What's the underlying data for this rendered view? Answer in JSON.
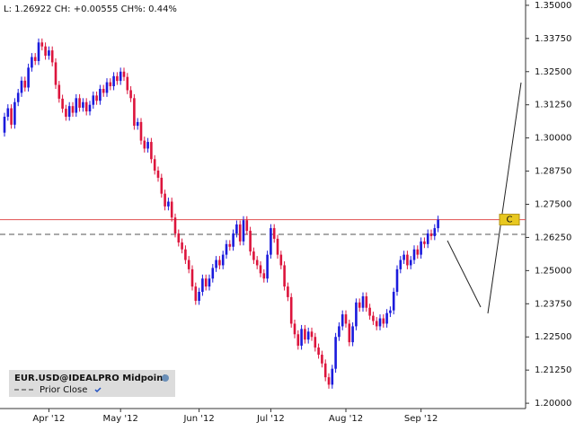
{
  "chart_data": {
    "type": "candlestick",
    "header": "L: 1.26922 CH: +0.00555 CH%: 0.44%",
    "categories": [
      null,
      null,
      null,
      null,
      null,
      null,
      null,
      null,
      null,
      null,
      null,
      null,
      null,
      "Apr '12",
      null,
      null,
      null,
      null,
      null,
      null,
      null,
      null,
      null,
      null,
      null,
      null,
      null,
      null,
      null,
      null,
      null,
      null,
      null,
      null,
      "May '12",
      null,
      null,
      null,
      null,
      null,
      null,
      null,
      null,
      null,
      null,
      null,
      null,
      null,
      null,
      null,
      null,
      null,
      null,
      null,
      null,
      null,
      null,
      "Jun '12",
      null,
      null,
      null,
      null,
      null,
      null,
      null,
      null,
      null,
      null,
      null,
      null,
      null,
      null,
      null,
      null,
      null,
      null,
      null,
      null,
      "Jul '12",
      null,
      null,
      null,
      null,
      null,
      null,
      null,
      null,
      null,
      null,
      null,
      null,
      null,
      null,
      null,
      null,
      null,
      null,
      null,
      null,
      null,
      "Aug '12",
      null,
      null,
      null,
      null,
      null,
      null,
      null,
      null,
      null,
      null,
      null,
      null,
      null,
      null,
      null,
      null,
      null,
      null,
      null,
      null,
      null,
      "Sep '12",
      null,
      null,
      null,
      null,
      null
    ],
    "series": [
      {
        "name": "EUR.USD@IDEALPRO Midpoint",
        "up_color": "#1a1adc",
        "down_color": "#dc143c",
        "open": [
          1.302,
          1.308,
          1.3112,
          1.305,
          1.3135,
          1.317,
          1.3216,
          1.319,
          1.3265,
          1.3305,
          1.329,
          1.336,
          1.3345,
          1.331,
          1.333,
          1.3285,
          1.32,
          1.3148,
          1.311,
          1.308,
          1.312,
          1.3095,
          1.315,
          1.3114,
          1.3135,
          1.31,
          1.3125,
          1.316,
          1.314,
          1.3185,
          1.317,
          1.321,
          1.3195,
          1.3233,
          1.3215,
          1.325,
          1.323,
          1.318,
          1.315,
          1.3046,
          1.306,
          1.299,
          1.296,
          1.2985,
          1.292,
          1.2877,
          1.285,
          1.279,
          1.2742,
          1.276,
          1.27,
          1.264,
          1.2606,
          1.258,
          1.254,
          1.2505,
          1.244,
          1.2386,
          1.242,
          1.247,
          1.244,
          1.247,
          1.251,
          1.254,
          1.252,
          1.256,
          1.26,
          1.259,
          1.264,
          1.2674,
          1.261,
          1.269,
          1.265,
          1.2572,
          1.254,
          1.252,
          1.249,
          1.247,
          1.256,
          1.266,
          1.262,
          1.256,
          1.252,
          1.244,
          1.24,
          1.23,
          1.226,
          1.2217,
          1.228,
          1.224,
          1.227,
          1.225,
          1.221,
          1.2183,
          1.215,
          1.2098,
          1.207,
          1.213,
          1.225,
          1.229,
          1.2335,
          1.23,
          1.223,
          1.229,
          1.238,
          1.236,
          1.2403,
          1.236,
          1.233,
          1.231,
          1.229,
          1.232,
          1.23,
          1.234,
          1.235,
          1.242,
          1.2505,
          1.254,
          1.256,
          1.252,
          1.254,
          1.258,
          1.256,
          1.261,
          1.26,
          1.264,
          1.263,
          1.266
        ],
        "close": [
          1.308,
          1.3112,
          1.305,
          1.3135,
          1.317,
          1.3216,
          1.319,
          1.3265,
          1.3305,
          1.329,
          1.336,
          1.3345,
          1.331,
          1.333,
          1.3285,
          1.32,
          1.3148,
          1.311,
          1.308,
          1.312,
          1.3095,
          1.315,
          1.3114,
          1.3135,
          1.31,
          1.3125,
          1.316,
          1.314,
          1.3185,
          1.317,
          1.321,
          1.3195,
          1.3233,
          1.3215,
          1.325,
          1.323,
          1.318,
          1.315,
          1.3046,
          1.306,
          1.299,
          1.296,
          1.2985,
          1.292,
          1.2877,
          1.285,
          1.279,
          1.2742,
          1.276,
          1.27,
          1.264,
          1.2606,
          1.258,
          1.254,
          1.2505,
          1.244,
          1.2386,
          1.242,
          1.247,
          1.244,
          1.247,
          1.251,
          1.254,
          1.252,
          1.256,
          1.26,
          1.259,
          1.264,
          1.2674,
          1.261,
          1.269,
          1.265,
          1.2572,
          1.254,
          1.252,
          1.249,
          1.247,
          1.256,
          1.266,
          1.262,
          1.256,
          1.252,
          1.244,
          1.24,
          1.23,
          1.226,
          1.2217,
          1.228,
          1.224,
          1.227,
          1.225,
          1.221,
          1.2183,
          1.215,
          1.2098,
          1.207,
          1.213,
          1.225,
          1.229,
          1.2335,
          1.23,
          1.223,
          1.229,
          1.238,
          1.236,
          1.2403,
          1.236,
          1.233,
          1.231,
          1.229,
          1.232,
          1.23,
          1.234,
          1.235,
          1.242,
          1.2505,
          1.254,
          1.256,
          1.252,
          1.254,
          1.258,
          1.256,
          1.261,
          1.26,
          1.264,
          1.263,
          1.266,
          1.2692
        ],
        "high": [
          1.3095,
          1.3127,
          1.3127,
          1.315,
          1.3185,
          1.3231,
          1.3231,
          1.328,
          1.332,
          1.332,
          1.3375,
          1.3375,
          1.336,
          1.3345,
          1.3345,
          1.33,
          1.3215,
          1.3163,
          1.3125,
          1.3135,
          1.3135,
          1.3165,
          1.3165,
          1.315,
          1.315,
          1.314,
          1.3175,
          1.3175,
          1.32,
          1.32,
          1.3225,
          1.3225,
          1.3248,
          1.3248,
          1.3265,
          1.3265,
          1.3245,
          1.3195,
          1.3165,
          1.3075,
          1.3075,
          1.3005,
          1.3,
          1.3,
          1.2935,
          1.2892,
          1.2865,
          1.2805,
          1.2775,
          1.2775,
          1.2715,
          1.2655,
          1.2621,
          1.2595,
          1.2555,
          1.252,
          1.2455,
          1.2435,
          1.2485,
          1.2485,
          1.2485,
          1.2525,
          1.2555,
          1.2555,
          1.2575,
          1.2615,
          1.2615,
          1.2655,
          1.2689,
          1.2689,
          1.2705,
          1.2705,
          1.2665,
          1.2587,
          1.2555,
          1.2535,
          1.2505,
          1.2575,
          1.2675,
          1.2675,
          1.2635,
          1.2575,
          1.2535,
          1.2455,
          1.2415,
          1.2315,
          1.2275,
          1.2295,
          1.2295,
          1.2285,
          1.2285,
          1.2265,
          1.2225,
          1.2198,
          1.2165,
          1.2113,
          1.2145,
          1.2265,
          1.2305,
          1.235,
          1.235,
          1.2315,
          1.2305,
          1.2395,
          1.2395,
          1.2418,
          1.2418,
          1.2375,
          1.2345,
          1.2325,
          1.2335,
          1.2335,
          1.2355,
          1.2365,
          1.2435,
          1.252,
          1.2555,
          1.2575,
          1.2575,
          1.2555,
          1.2595,
          1.2595,
          1.2625,
          1.2625,
          1.2655,
          1.2655,
          1.2675,
          1.2707
        ],
        "low": [
          1.3005,
          1.3065,
          1.3035,
          1.3035,
          1.312,
          1.3155,
          1.3175,
          1.3175,
          1.325,
          1.3275,
          1.3275,
          1.333,
          1.3295,
          1.3295,
          1.327,
          1.3185,
          1.3133,
          1.3095,
          1.3065,
          1.3065,
          1.308,
          1.308,
          1.3099,
          1.3099,
          1.3085,
          1.3085,
          1.311,
          1.3125,
          1.3125,
          1.3155,
          1.3155,
          1.318,
          1.318,
          1.32,
          1.32,
          1.3215,
          1.3165,
          1.3135,
          1.3031,
          1.3031,
          1.2975,
          1.2945,
          1.2945,
          1.2905,
          1.2862,
          1.2835,
          1.2775,
          1.2727,
          1.2727,
          1.2685,
          1.2625,
          1.2591,
          1.2565,
          1.2525,
          1.249,
          1.2425,
          1.2371,
          1.2371,
          1.2405,
          1.2425,
          1.2425,
          1.2455,
          1.2495,
          1.2505,
          1.2505,
          1.2545,
          1.2575,
          1.2575,
          1.2625,
          1.2595,
          1.2595,
          1.2635,
          1.2557,
          1.2525,
          1.2505,
          1.2475,
          1.2455,
          1.2455,
          1.2545,
          1.2605,
          1.2545,
          1.2505,
          1.2425,
          1.2385,
          1.2285,
          1.2245,
          1.2202,
          1.2202,
          1.2225,
          1.2225,
          1.2235,
          1.2195,
          1.2168,
          1.2135,
          1.2083,
          1.2055,
          1.2055,
          1.2115,
          1.2235,
          1.2275,
          1.2285,
          1.2215,
          1.2215,
          1.2275,
          1.2345,
          1.2345,
          1.2345,
          1.2315,
          1.2295,
          1.2275,
          1.2275,
          1.2285,
          1.2285,
          1.2325,
          1.2335,
          1.2405,
          1.249,
          1.2525,
          1.2505,
          1.2505,
          1.2525,
          1.2545,
          1.2545,
          1.2585,
          1.2585,
          1.2615,
          1.2615,
          1.2645
        ]
      }
    ],
    "reference_lines": [
      {
        "name": "Prior Close",
        "value": 1.26367,
        "color": "#555555",
        "style": "dashed"
      },
      {
        "label": "C",
        "value": 1.26922,
        "color": "#e05050",
        "style": "solid"
      }
    ],
    "ylim": [
      1.198,
      1.352
    ],
    "yticks": [
      {
        "value": 1.35,
        "label": "1.35000"
      },
      {
        "value": 1.3375,
        "label": "1.33750"
      },
      {
        "value": 1.325,
        "label": "1.32500"
      },
      {
        "value": 1.3125,
        "label": "1.31250"
      },
      {
        "value": 1.3,
        "label": "1.30000"
      },
      {
        "value": 1.2875,
        "label": "1.28750"
      },
      {
        "value": 1.275,
        "label": "1.27500"
      },
      {
        "value": 1.2625,
        "label": "1.26250"
      },
      {
        "value": 1.25,
        "label": "1.25000"
      },
      {
        "value": 1.2375,
        "label": "1.23750"
      },
      {
        "value": 1.225,
        "label": "1.22500"
      },
      {
        "value": 1.2125,
        "label": "1.21250"
      },
      {
        "value": 1.2,
        "label": "1.20000"
      }
    ],
    "grid": false
  }
}
